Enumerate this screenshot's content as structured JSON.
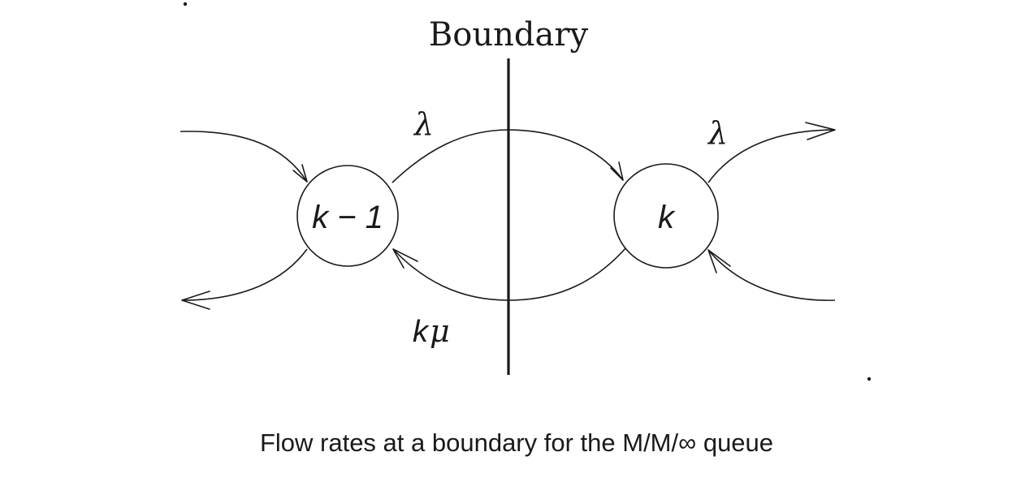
{
  "diagram": {
    "boundary_label": "Boundary",
    "states": {
      "left": "k − 1",
      "right": "k"
    },
    "rates": {
      "arrival_between": "λ",
      "arrival_out": "λ",
      "departure_between_k": "k",
      "departure_between_mu": "μ"
    },
    "caption": "Flow rates at a boundary for the M/M/∞ queue"
  }
}
